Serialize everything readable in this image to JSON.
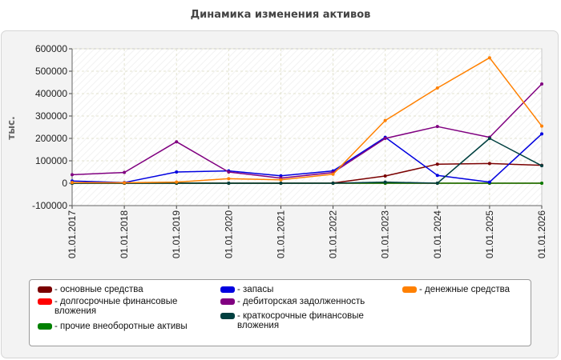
{
  "chart_data": {
    "type": "line",
    "title": "Динамика изменения активов",
    "ylabel": "тыс.",
    "xlabel": "",
    "ylim": [
      -100000,
      600000
    ],
    "yticks": [
      -100000,
      0,
      100000,
      200000,
      300000,
      400000,
      500000,
      600000
    ],
    "x": [
      "01.01.2017",
      "01.01.2018",
      "01.01.2019",
      "01.01.2020",
      "01.01.2021",
      "01.01.2022",
      "01.01.2023",
      "01.01.2024",
      "01.01.2025",
      "01.01.2026"
    ],
    "grid": true,
    "legend": "bottom",
    "series": [
      {
        "name": "основные средства",
        "color": "#7a0000",
        "values": [
          2000,
          1000,
          1000,
          0,
          0,
          1000,
          32000,
          85000,
          88000,
          80000
        ]
      },
      {
        "name": "долгосрочные финансовые вложения",
        "color": "#ff0000",
        "values": [
          0,
          0,
          0,
          0,
          0,
          0,
          0,
          0,
          0,
          0
        ]
      },
      {
        "name": "прочие внеоборотные активы",
        "color": "#008000",
        "values": [
          0,
          0,
          0,
          0,
          0,
          0,
          0,
          0,
          0,
          0
        ]
      },
      {
        "name": "запасы",
        "color": "#0000e0",
        "values": [
          10000,
          3000,
          50000,
          55000,
          33000,
          55000,
          205000,
          35000,
          5000,
          220000
        ]
      },
      {
        "name": "дебиторская задолженность",
        "color": "#800080",
        "values": [
          38000,
          48000,
          185000,
          50000,
          23000,
          48000,
          200000,
          253000,
          205000,
          443000
        ]
      },
      {
        "name": "краткосрочные финансовые вложения",
        "color": "#004040",
        "values": [
          0,
          0,
          0,
          0,
          0,
          0,
          5000,
          0,
          200000,
          78000
        ]
      },
      {
        "name": "денежные средства",
        "color": "#ff8000",
        "values": [
          3000,
          2000,
          5000,
          20000,
          15000,
          40000,
          280000,
          425000,
          560000,
          255000
        ]
      }
    ]
  }
}
